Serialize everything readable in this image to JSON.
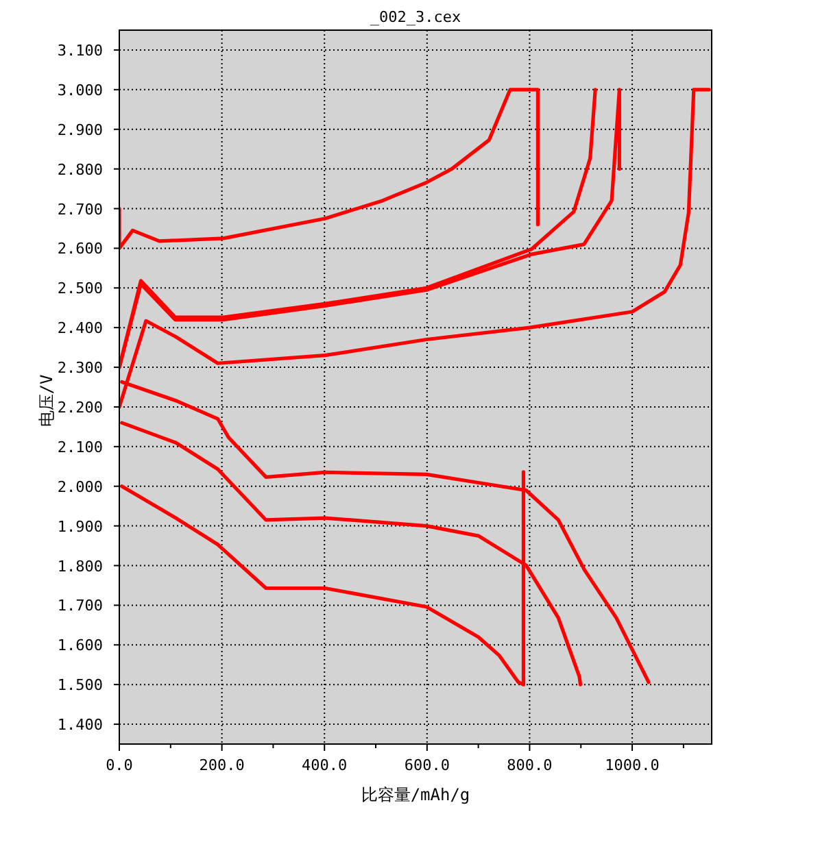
{
  "chart_data": {
    "type": "line",
    "title": "_002_3.cex",
    "xlabel": "比容量/mAh/g",
    "ylabel": "电压/V",
    "xlim": [
      0,
      1155
    ],
    "ylim": [
      1.35,
      3.15
    ],
    "xticks": [
      {
        "value": 0,
        "label": "0.0"
      },
      {
        "value": 100,
        "label": null
      },
      {
        "value": 200,
        "label": "200.0"
      },
      {
        "value": 300,
        "label": null
      },
      {
        "value": 400,
        "label": "400.0"
      },
      {
        "value": 500,
        "label": null
      },
      {
        "value": 600,
        "label": "600.0"
      },
      {
        "value": 700,
        "label": null
      },
      {
        "value": 800,
        "label": "800.0"
      },
      {
        "value": 900,
        "label": null
      },
      {
        "value": 1000,
        "label": "1000.0"
      },
      {
        "value": 1100,
        "label": null
      }
    ],
    "yticks": [
      {
        "value": 1.4,
        "label": "1.400"
      },
      {
        "value": 1.5,
        "label": "1.500"
      },
      {
        "value": 1.6,
        "label": "1.600"
      },
      {
        "value": 1.7,
        "label": "1.700"
      },
      {
        "value": 1.8,
        "label": "1.800"
      },
      {
        "value": 1.9,
        "label": "1.900"
      },
      {
        "value": 2.0,
        "label": "2.000"
      },
      {
        "value": 2.1,
        "label": "2.100"
      },
      {
        "value": 2.2,
        "label": "2.200"
      },
      {
        "value": 2.3,
        "label": "2.300"
      },
      {
        "value": 2.4,
        "label": "2.400"
      },
      {
        "value": 2.5,
        "label": "2.500"
      },
      {
        "value": 2.6,
        "label": "2.600"
      },
      {
        "value": 2.7,
        "label": "2.700"
      },
      {
        "value": 2.8,
        "label": "2.800"
      },
      {
        "value": 2.9,
        "label": "2.900"
      },
      {
        "value": 3.0,
        "label": "3.000"
      },
      {
        "value": 3.1,
        "label": "3.100"
      }
    ],
    "grid": true,
    "series": [
      {
        "color": "#ff0000",
        "x": [
          0,
          0,
          26,
          78,
          203,
          401,
          513,
          599,
          648,
          721,
          762,
          816,
          816
        ],
        "values": [
          2.7,
          2.6,
          2.645,
          2.618,
          2.625,
          2.675,
          2.72,
          2.766,
          2.8,
          2.873,
          3.0,
          3.0,
          2.66
        ]
      },
      {
        "color": "#ff0000",
        "x": [
          0,
          42,
          109,
          203,
          401,
          599,
          804,
          886,
          918,
          928
        ],
        "values": [
          2.3,
          2.518,
          2.426,
          2.426,
          2.46,
          2.5,
          2.598,
          2.692,
          2.827,
          3.0
        ]
      },
      {
        "color": "#ff0000",
        "x": [
          0,
          42,
          109,
          203,
          401,
          599,
          804,
          906,
          960,
          975,
          975
        ],
        "values": [
          2.3,
          2.51,
          2.42,
          2.42,
          2.455,
          2.495,
          2.585,
          2.61,
          2.72,
          3.0,
          2.8
        ]
      },
      {
        "color": "#ff0000",
        "x": [
          0,
          52,
          110,
          192,
          401,
          599,
          800,
          1000,
          1063,
          1094,
          1110,
          1120,
          1150
        ],
        "values": [
          2.2,
          2.417,
          2.377,
          2.31,
          2.33,
          2.37,
          2.4,
          2.44,
          2.49,
          2.558,
          2.69,
          3.0,
          3.0
        ]
      },
      {
        "color": "#ff0000",
        "x": [
          5,
          110,
          192,
          213,
          286,
          401,
          599,
          700,
          793,
          856,
          907,
          969,
          1032
        ],
        "values": [
          2.263,
          2.216,
          2.17,
          2.123,
          2.023,
          2.035,
          2.03,
          2.009,
          1.99,
          1.915,
          1.789,
          1.668,
          1.506
        ]
      },
      {
        "color": "#ff0000",
        "x": [
          5,
          110,
          192,
          286,
          401,
          599,
          700,
          793,
          856,
          897,
          899
        ],
        "values": [
          2.16,
          2.11,
          2.043,
          1.915,
          1.92,
          1.9,
          1.875,
          1.801,
          1.668,
          1.52,
          1.5
        ]
      },
      {
        "color": "#ff0000",
        "x": [
          5,
          110,
          192,
          286,
          401,
          599,
          700,
          741,
          778,
          788,
          788,
          788
        ],
        "values": [
          2.0,
          1.92,
          1.853,
          1.743,
          1.743,
          1.696,
          1.62,
          1.573,
          1.506,
          1.5,
          2.036,
          1.5
        ]
      }
    ]
  }
}
